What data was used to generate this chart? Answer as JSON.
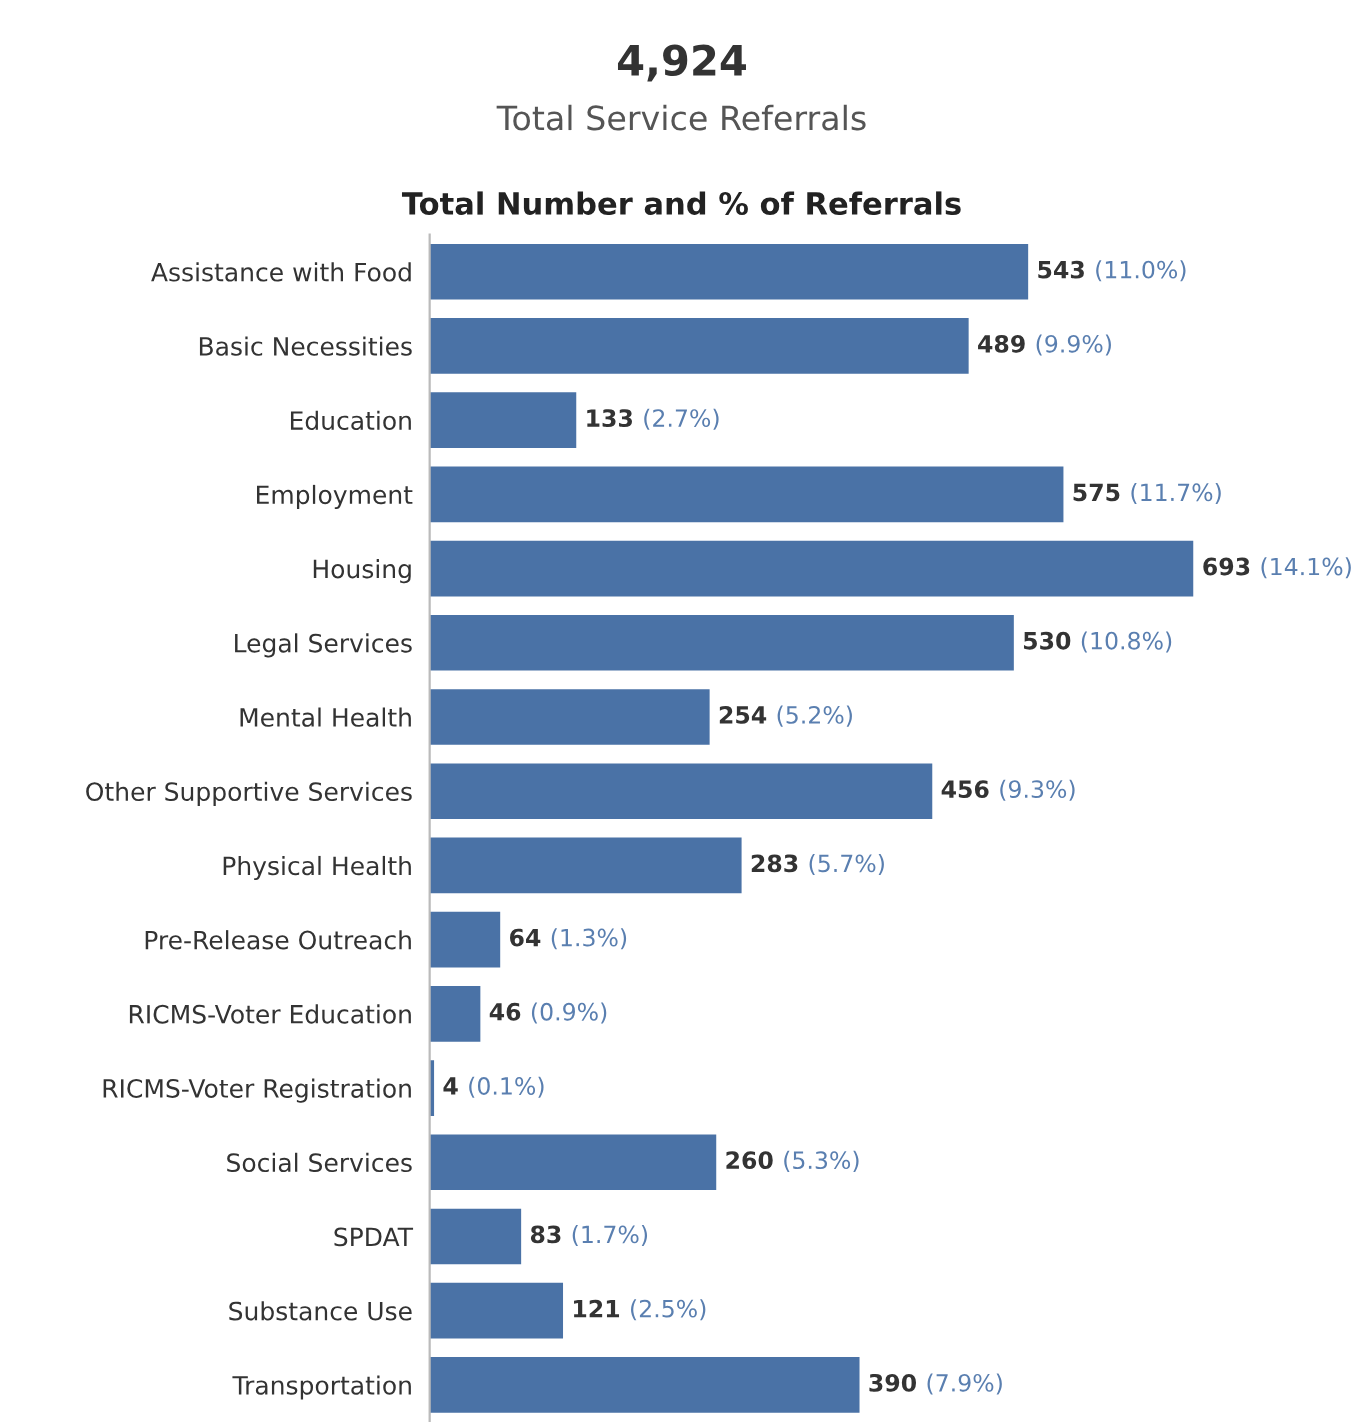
{
  "chart_data": {
    "type": "bar",
    "orientation": "horizontal",
    "title": "Total Number and % of Referrals",
    "annotations": [
      "4,924",
      "Total Service Referrals"
    ],
    "categories": [
      "Assistance with Food",
      "Basic Necessities",
      "Education",
      "Employment",
      "Housing",
      "Legal Services",
      "Mental Health",
      "Other Supportive Services",
      "Physical Health",
      "Pre-Release Outreach",
      "RICMS-Voter Education",
      "RICMS-Voter Registration",
      "Social Services",
      "SPDAT",
      "Substance Use",
      "Transportation"
    ],
    "values": [
      543,
      489,
      133,
      575,
      693,
      530,
      254,
      456,
      283,
      64,
      46,
      4,
      260,
      83,
      121,
      390
    ],
    "value_labels": [
      "543 (11.0%)",
      "489 (9.9%)",
      "133 (2.7%)",
      "575 (11.7%)",
      "693 (14.1%)",
      "530 (10.8%)",
      "254 (5.2%)",
      "456 (9.3%)",
      "283 (5.7%)",
      "64 (1.3%)",
      "46 (0.9%)",
      "4 (0.1%)",
      "260 (5.3%)",
      "83 (1.7%)",
      "121 (2.5%)",
      "390 (7.9%)"
    ],
    "color": "#4a72a6"
  }
}
